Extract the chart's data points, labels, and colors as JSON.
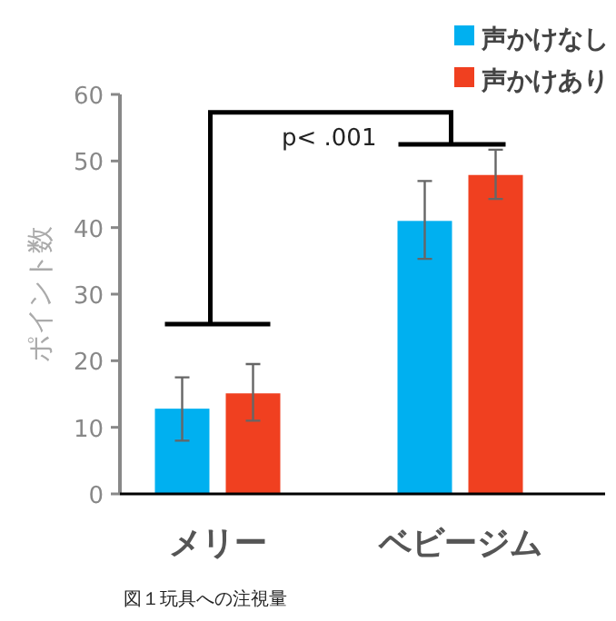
{
  "chart_data": {
    "type": "bar",
    "ylabel": "ポイント数",
    "categories": [
      "メリー",
      "ベビージム"
    ],
    "series": [
      {
        "name": "声かけなし",
        "color": "#00b0f0",
        "values": [
          12.8,
          41
        ],
        "errors": [
          [
            8,
            17.5
          ],
          [
            35.3,
            47
          ]
        ]
      },
      {
        "name": "声かけあり",
        "color": "#f04020",
        "values": [
          15.1,
          47.9
        ],
        "errors": [
          [
            11,
            19.5
          ],
          [
            44.3,
            51.7
          ]
        ]
      }
    ],
    "ylim": [
      0,
      60
    ],
    "yticks": [
      0,
      10,
      20,
      30,
      40,
      50,
      60
    ],
    "legend": "top right",
    "annotations": [
      "p< .001",
      "図１玩具への注視量"
    ]
  }
}
